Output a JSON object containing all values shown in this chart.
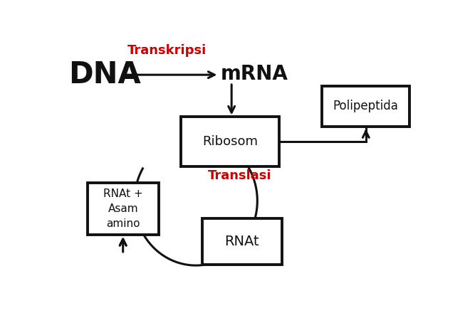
{
  "bg_color": "#ffffff",
  "dna_text": "DNA",
  "transkripsi_text": "Transkripsi",
  "mrna_text": "mRNA",
  "ribosom_text": "Ribosom",
  "translasi_text": "Translasi",
  "rnat_amino_text": "RNAt +\nAsam\namino",
  "rnat_text": "RNAt",
  "polipeptida_text": "Polipeptida",
  "red_color": "#cc0000",
  "black_color": "#111111",
  "pencil_image": true
}
